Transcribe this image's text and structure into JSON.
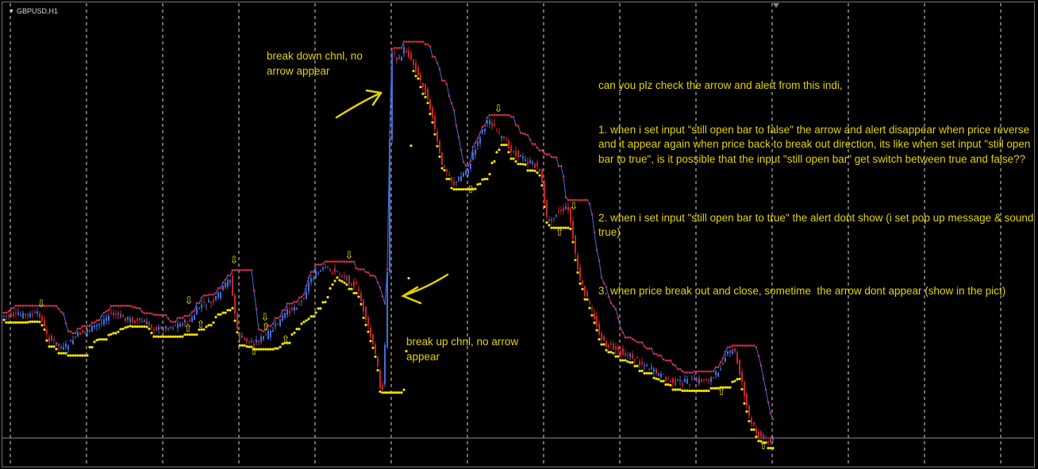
{
  "window": {
    "symbol_title": "GBPUSD,H1",
    "menu_icon": "triangle-down-icon"
  },
  "colors": {
    "bull": "#3f6fe0",
    "bear": "#c8242c",
    "upper_channel": "#e0283c",
    "lower_channel": "#f0e000",
    "arrow": "#f0e000",
    "annotation": "#e2d300",
    "grid": "#ffffff"
  },
  "annotations": {
    "break_down": "break down chnl, no\narrow appear",
    "break_up": "break up chnl, no arrow\nappear",
    "question_intro": "can you plz check the arrow and alert from this indi,",
    "point_1": "1. when i set input \"still open bar to false\" the arrow and alert disappear when price reverse and it appear again when price back to break out direction, its like when set input \"still open bar to true\", is it possible that the input \"still open bar\" get switch between true and false??",
    "point_2": "2. when i set input \"still open bar to true\" the alert dont show (i set pop up message & sound true)",
    "point_3": "3. when price break out and close, sometime  the arrow dont appear (show in the pict)"
  }
}
